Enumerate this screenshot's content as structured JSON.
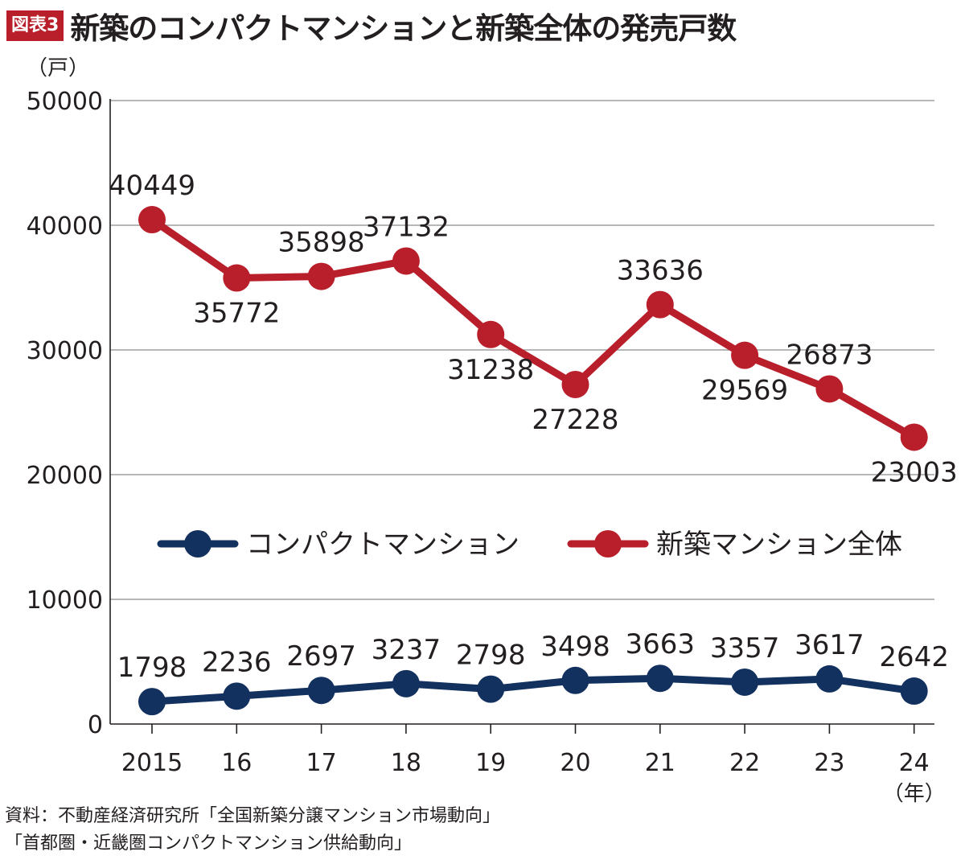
{
  "figure_label": "図表3",
  "title": "新築のコンパクトマンションと新築全体の発売戸数",
  "source_lines": [
    "資料：不動産経済研究所「全国新築分譲マンション市場動向」",
    "「首都圏・近畿圏コンパクトマンション供給動向」"
  ],
  "chart_data": {
    "type": "line",
    "title": "新築のコンパクトマンションと新築全体の発売戸数",
    "x": [
      "2015",
      "16",
      "17",
      "18",
      "19",
      "20",
      "21",
      "22",
      "23",
      "24"
    ],
    "xlabel": "（年）",
    "ylabel": "（戸）",
    "ylim": [
      0,
      50000
    ],
    "yticks": [
      0,
      10000,
      20000,
      30000,
      40000,
      50000
    ],
    "grid": true,
    "legend_position": "center",
    "series": [
      {
        "name": "コンパクトマンション",
        "color": "#13315f",
        "values": [
          1798,
          2236,
          2697,
          3237,
          2798,
          3498,
          3663,
          3357,
          3617,
          2642
        ],
        "label_positions": [
          "above",
          "above",
          "above",
          "above",
          "above",
          "above",
          "above",
          "above",
          "above",
          "above"
        ]
      },
      {
        "name": "新築マンション全体",
        "color": "#b81f2a",
        "values": [
          40449,
          35772,
          35898,
          37132,
          31238,
          27228,
          33636,
          29569,
          26873,
          23003
        ],
        "label_positions": [
          "above",
          "below",
          "above",
          "above",
          "below",
          "below",
          "above",
          "below",
          "above",
          "below"
        ]
      }
    ]
  }
}
